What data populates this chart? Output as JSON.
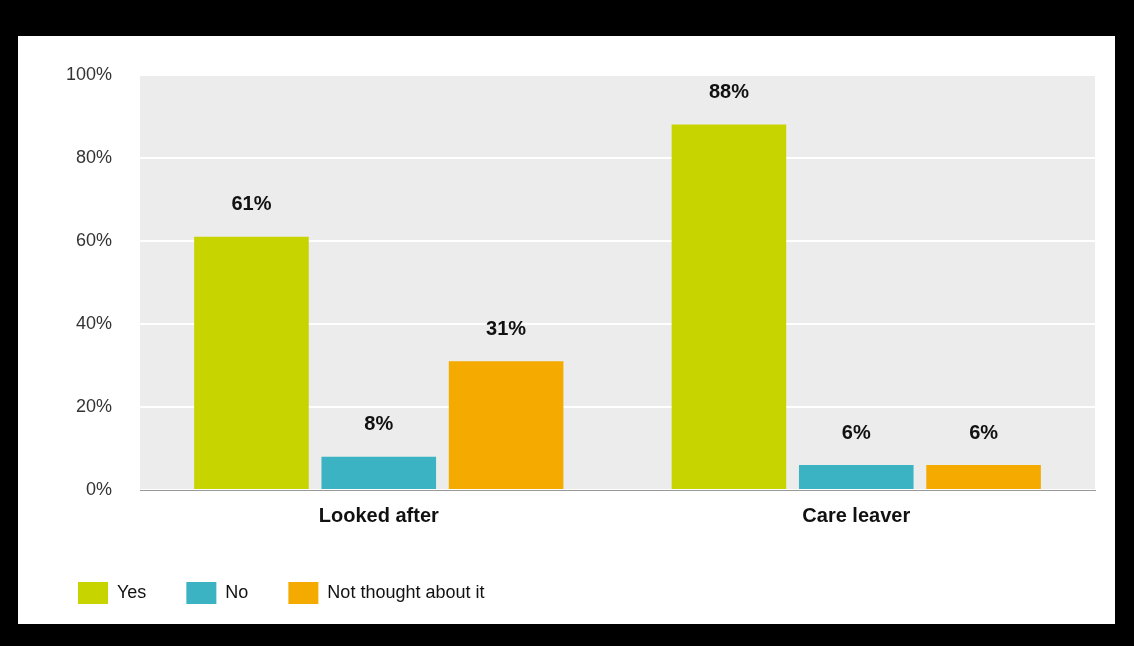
{
  "chart_data": {
    "type": "bar",
    "categories": [
      "Looked after",
      "Care leaver"
    ],
    "series": [
      {
        "name": "Yes",
        "color": "#c8d400",
        "values": [
          61,
          88
        ],
        "value_labels": [
          "61%",
          "88%"
        ]
      },
      {
        "name": "No",
        "color": "#3bb3c3",
        "values": [
          8,
          6
        ],
        "value_labels": [
          "8%",
          "6%"
        ]
      },
      {
        "name": "Not thought about it",
        "color": "#f5aa00",
        "values": [
          31,
          6
        ],
        "value_labels": [
          "31%",
          "6%"
        ]
      }
    ],
    "ylim": [
      0,
      100
    ],
    "yticks": [
      {
        "value": 0,
        "label": "0%"
      },
      {
        "value": 20,
        "label": "20%"
      },
      {
        "value": 40,
        "label": "40%"
      },
      {
        "value": 60,
        "label": "60%"
      },
      {
        "value": 80,
        "label": "80%"
      },
      {
        "value": 100,
        "label": "100%"
      }
    ],
    "grid": "y",
    "legend": "bottom left"
  }
}
